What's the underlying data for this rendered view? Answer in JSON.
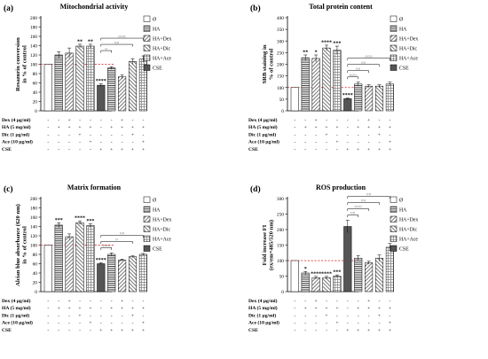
{
  "colors": {
    "white_fill": "#ffffff",
    "hatch_fill": "#6e6e6e",
    "cse_fill": "#555555",
    "ref_line": "#e02020",
    "stroke": "#000000"
  },
  "legend_entries": [
    {
      "label": "Ø",
      "pattern": "white"
    },
    {
      "label": "HA",
      "pattern": "horizontal"
    },
    {
      "label": "HA+Dex",
      "pattern": "diag-up"
    },
    {
      "label": "HA+Dic",
      "pattern": "diag-down"
    },
    {
      "label": "HA+Ace",
      "pattern": "cross"
    },
    {
      "label": "CSE",
      "pattern": "solid"
    }
  ],
  "treatment_table": {
    "rows": [
      {
        "label": "Dex (4 µg/ml)",
        "values": [
          "-",
          "-",
          "+",
          "-",
          "-",
          "-",
          "-",
          "+",
          "-",
          "-"
        ]
      },
      {
        "label": "HA  (5 mg/ml)",
        "values": [
          "-",
          "+",
          "+",
          "+",
          "+",
          "-",
          "+",
          "+",
          "+",
          "+"
        ]
      },
      {
        "label": "Dic  (1 µg/ml)",
        "values": [
          "-",
          "-",
          "-",
          "+",
          "-",
          "-",
          "-",
          "-",
          "+",
          "-"
        ]
      },
      {
        "label": "Ace  (10 µg/ml)",
        "values": [
          "-",
          "-",
          "-",
          "-",
          "+",
          "-",
          "-",
          "-",
          "-",
          "+"
        ]
      },
      {
        "label": "CSE",
        "values": [
          "-",
          "-",
          "-",
          "-",
          "-",
          "+",
          "+",
          "+",
          "+",
          "+"
        ]
      }
    ]
  },
  "chart_data": [
    {
      "panel": "(a)",
      "type": "bar",
      "title": "Mitochondrial activity",
      "ylabel_lines": [
        "Resazurin conversion",
        "in % of control"
      ],
      "ylim": [
        0,
        200
      ],
      "yticks": [
        "0",
        "20",
        "40",
        "60",
        "80",
        "100",
        "120",
        "140",
        "160",
        "180",
        "200"
      ],
      "ref_line": 100,
      "values": [
        100,
        120,
        124,
        139,
        139,
        55,
        92,
        73,
        106,
        111
      ],
      "errors": [
        0,
        7,
        11,
        4,
        4,
        3,
        3,
        4,
        6,
        7
      ],
      "patterns": [
        "white",
        "horizontal",
        "diag-up",
        "diag-down",
        "cross",
        "solid",
        "horizontal",
        "diag-up",
        "diag-down",
        "cross"
      ],
      "stars": [
        "",
        "",
        "",
        "**",
        "**",
        "****",
        "",
        "",
        "",
        ""
      ],
      "brackets": [
        {
          "from": 5,
          "to": 6,
          "label": "○"
        },
        {
          "from": 5,
          "to": 8,
          "label": "○○"
        },
        {
          "from": 5,
          "to": 9,
          "label": "○○○"
        }
      ]
    },
    {
      "panel": "(b)",
      "type": "bar",
      "title": "Total protein content",
      "ylabel_lines": [
        "SRB staining in",
        "% of control"
      ],
      "ylim": [
        0,
        400
      ],
      "yticks": [
        "0",
        "50",
        "100",
        "150",
        "200",
        "250",
        "300",
        "350",
        "400"
      ],
      "ref_line": 100,
      "values": [
        100,
        228,
        225,
        270,
        260,
        52,
        115,
        106,
        106,
        115
      ],
      "errors": [
        0,
        12,
        15,
        12,
        18,
        3,
        8,
        6,
        6,
        8
      ],
      "patterns": [
        "white",
        "horizontal",
        "diag-up",
        "diag-down",
        "cross",
        "solid",
        "horizontal",
        "diag-up",
        "diag-down",
        "cross"
      ],
      "stars": [
        "",
        "**",
        "*",
        "****",
        "***",
        "****",
        "",
        "",
        "",
        ""
      ],
      "brackets": [
        {
          "from": 5,
          "to": 6,
          "label": "○○○"
        },
        {
          "from": 5,
          "to": 7,
          "label": "○○"
        },
        {
          "from": 5,
          "to": 8,
          "label": "○○"
        },
        {
          "from": 5,
          "to": 9,
          "label": "○○○"
        }
      ]
    },
    {
      "panel": "(c)",
      "type": "bar",
      "title": "Matrix formation",
      "ylabel_lines": [
        "Alcian blue absorbance (620 nm)",
        "in % of control"
      ],
      "ylim": [
        0,
        200
      ],
      "yticks": [
        "0",
        "20",
        "40",
        "60",
        "80",
        "100",
        "120",
        "140",
        "160",
        "180",
        "200"
      ],
      "ref_line": 100,
      "values": [
        100,
        143,
        118,
        148,
        142,
        60,
        80,
        68,
        75,
        80
      ],
      "errors": [
        0,
        5,
        6,
        4,
        4,
        2,
        3,
        2,
        2,
        2
      ],
      "patterns": [
        "white",
        "horizontal",
        "diag-up",
        "diag-down",
        "cross",
        "solid",
        "horizontal",
        "diag-up",
        "diag-down",
        "cross"
      ],
      "stars": [
        "",
        "***",
        "",
        "****",
        "***",
        "****",
        "",
        "",
        "",
        ""
      ],
      "brackets": [
        {
          "from": 5,
          "to": 6,
          "label": "○○○"
        },
        {
          "from": 5,
          "to": 8,
          "label": "○"
        },
        {
          "from": 5,
          "to": 9,
          "label": "○○"
        }
      ]
    },
    {
      "panel": "(d)",
      "type": "bar",
      "title": "ROS production",
      "ylabel_lines": [
        "Fold increase FI",
        "(ex/em=485/520 nm)"
      ],
      "ylim": [
        0,
        300
      ],
      "yticks": [
        "0",
        "50",
        "100",
        "150",
        "200",
        "250",
        "300"
      ],
      "ref_line": 100,
      "values": [
        100,
        60,
        45,
        45,
        50,
        210,
        108,
        93,
        108,
        143
      ],
      "errors": [
        0,
        5,
        4,
        4,
        4,
        20,
        8,
        5,
        10,
        12
      ],
      "patterns": [
        "white",
        "horizontal",
        "diag-up",
        "diag-down",
        "cross",
        "solid",
        "horizontal",
        "diag-up",
        "diag-down",
        "cross"
      ],
      "stars": [
        "",
        "*",
        "****",
        "****",
        "***",
        "",
        "",
        "",
        "",
        ""
      ],
      "brackets": [
        {
          "from": 5,
          "to": 6,
          "label": "○○"
        },
        {
          "from": 5,
          "to": 7,
          "label": "○○○"
        },
        {
          "from": 5,
          "to": 8,
          "label": "○○"
        },
        {
          "from": 5,
          "to": 9,
          "label": "○○"
        }
      ]
    }
  ]
}
